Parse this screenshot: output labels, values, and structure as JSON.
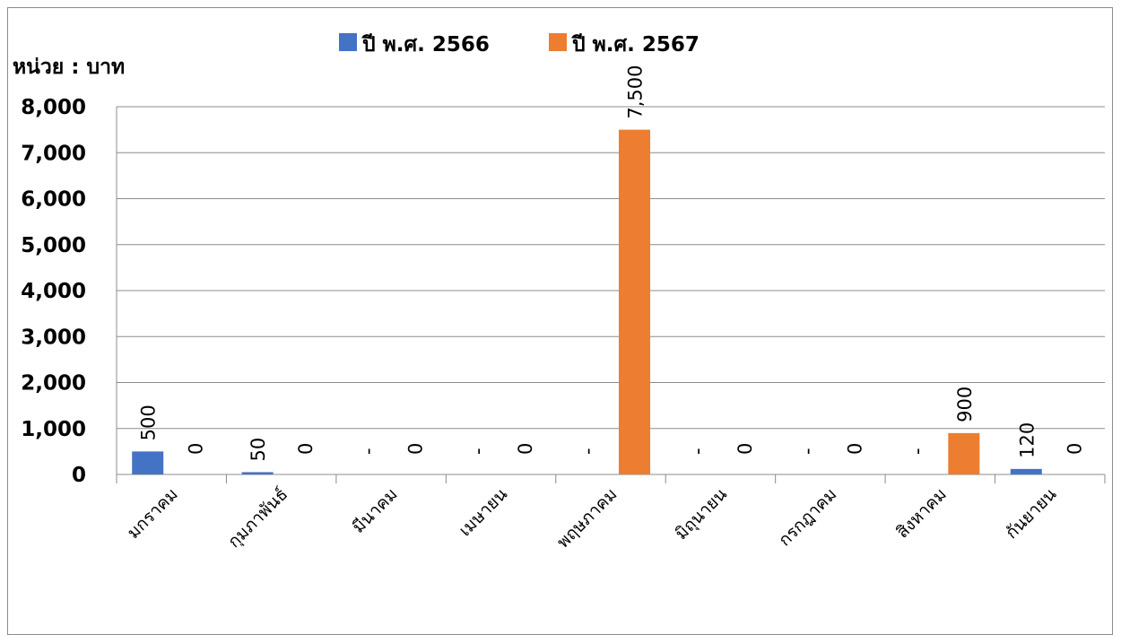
{
  "chart_data": {
    "type": "bar",
    "title": "",
    "ylabel": "หน่วย : บาท",
    "xlabel": "",
    "ylim": [
      0,
      8000
    ],
    "yticks": [
      0,
      1000,
      2000,
      3000,
      4000,
      5000,
      6000,
      7000,
      8000
    ],
    "ytick_labels": [
      "0",
      "1,000",
      "2,000",
      "3,000",
      "4,000",
      "5,000",
      "6,000",
      "7,000",
      "8,000"
    ],
    "grid": true,
    "legend_position": "top",
    "categories": [
      "มกราคม",
      "กุมภาพันธ์",
      "มีนาคม",
      "เมษายน",
      "พฤษภาคม",
      "มิถุนายน",
      "กรกฎาคม",
      "สิงหาคม",
      "กันยายน"
    ],
    "series": [
      {
        "name": "ปี พ.ศ. 2566",
        "color": "#4472c4",
        "values": [
          500,
          50,
          0,
          0,
          0,
          0,
          0,
          0,
          120
        ],
        "labels": [
          "500",
          "50",
          "-",
          "-",
          "-",
          "-",
          "-",
          "-",
          "120"
        ]
      },
      {
        "name": "ปี พ.ศ. 2567",
        "color": "#ed7d31",
        "values": [
          0,
          0,
          0,
          0,
          7500,
          0,
          0,
          900,
          0
        ],
        "labels": [
          "0",
          "0",
          "0",
          "0",
          "7,500",
          "0",
          "0",
          "900",
          "0"
        ]
      }
    ]
  }
}
